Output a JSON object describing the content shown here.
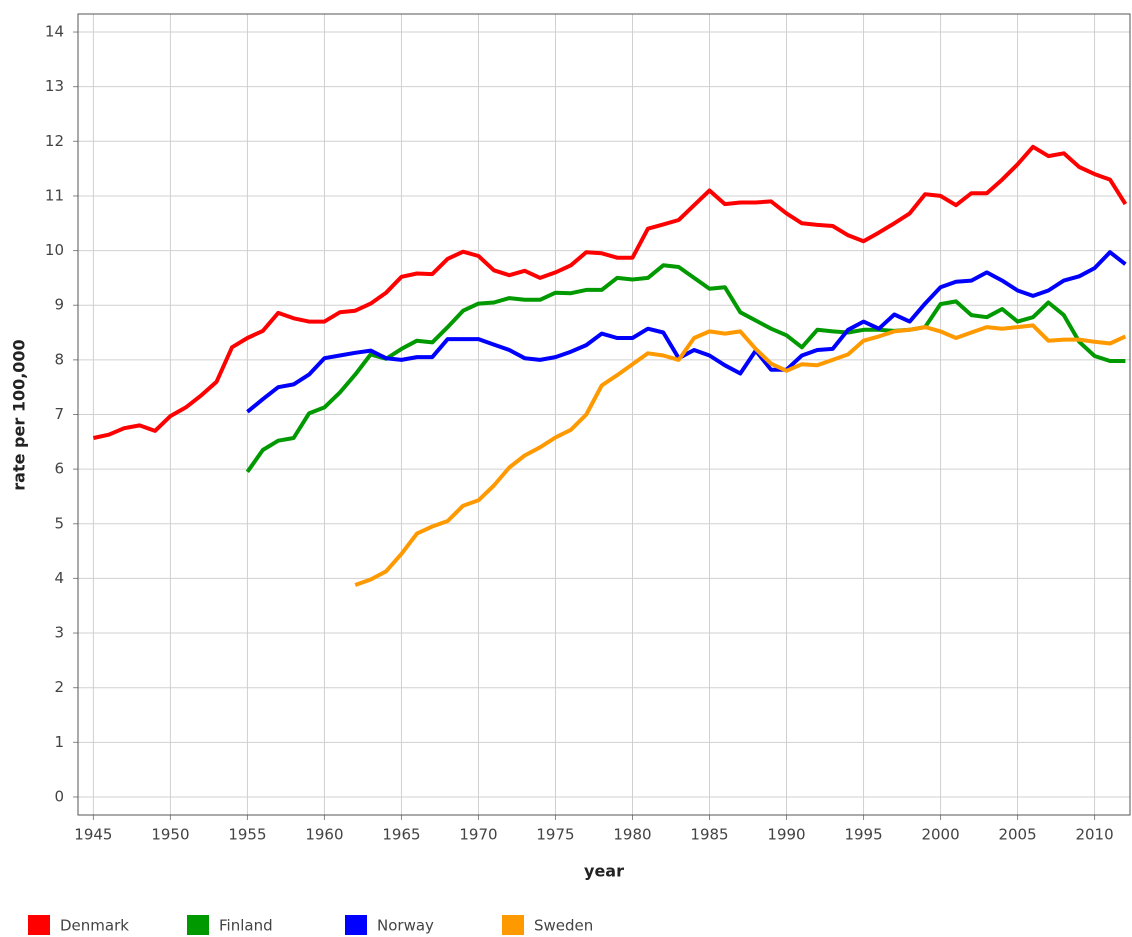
{
  "chart_data": {
    "type": "line",
    "x_label": "year",
    "y_label": "rate per 100,000",
    "x": [
      1945,
      1946,
      1947,
      1948,
      1949,
      1950,
      1951,
      1952,
      1953,
      1954,
      1955,
      1956,
      1957,
      1958,
      1959,
      1960,
      1961,
      1962,
      1963,
      1964,
      1965,
      1966,
      1967,
      1968,
      1969,
      1970,
      1971,
      1972,
      1973,
      1974,
      1975,
      1976,
      1977,
      1978,
      1979,
      1980,
      1981,
      1982,
      1983,
      1984,
      1985,
      1986,
      1987,
      1988,
      1989,
      1990,
      1991,
      1992,
      1993,
      1994,
      1995,
      1996,
      1997,
      1998,
      1999,
      2000,
      2001,
      2002,
      2003,
      2004,
      2005,
      2006,
      2007,
      2008,
      2009,
      2010,
      2011,
      2012
    ],
    "xlim": [
      1944,
      2012.3
    ],
    "xticks": [
      1945,
      1950,
      1955,
      1960,
      1965,
      1970,
      1975,
      1980,
      1985,
      1990,
      1995,
      2000,
      2005,
      2010
    ],
    "ylim": [
      -0.33,
      14.33
    ],
    "yticks": [
      0,
      1,
      2,
      3,
      4,
      5,
      6,
      7,
      8,
      9,
      10,
      11,
      12,
      13,
      14
    ],
    "grid": true,
    "legend": "bottom",
    "series": [
      {
        "name": "Denmark",
        "color": "#ff0000",
        "values": [
          6.57,
          6.63,
          6.75,
          6.8,
          6.7,
          6.97,
          7.13,
          7.35,
          7.6,
          8.23,
          8.4,
          8.53,
          8.86,
          8.76,
          8.7,
          8.7,
          8.87,
          8.9,
          9.03,
          9.23,
          9.52,
          9.58,
          9.57,
          9.85,
          9.98,
          9.9,
          9.64,
          9.55,
          9.63,
          9.5,
          9.6,
          9.73,
          9.97,
          9.95,
          9.87,
          9.87,
          10.4,
          10.48,
          10.56,
          10.83,
          11.1,
          10.85,
          10.88,
          10.88,
          10.9,
          10.68,
          10.5,
          10.47,
          10.45,
          10.28,
          10.17,
          10.33,
          10.5,
          10.68,
          11.03,
          11.0,
          10.83,
          11.05,
          11.05,
          11.3,
          11.58,
          11.9,
          11.73,
          11.78,
          11.53,
          11.4,
          11.3,
          10.85
        ]
      },
      {
        "name": "Finland",
        "color": "#009900",
        "values": [
          null,
          null,
          null,
          null,
          null,
          null,
          null,
          null,
          null,
          null,
          5.95,
          6.35,
          6.52,
          6.57,
          7.02,
          7.13,
          7.4,
          7.73,
          8.1,
          8.02,
          8.2,
          8.35,
          8.32,
          8.6,
          8.9,
          9.03,
          9.05,
          9.13,
          9.1,
          9.1,
          9.23,
          9.22,
          9.28,
          9.28,
          9.5,
          9.47,
          9.5,
          9.73,
          9.7,
          9.5,
          9.3,
          9.33,
          8.87,
          8.72,
          8.57,
          8.45,
          8.23,
          8.55,
          8.52,
          8.5,
          8.55,
          8.55,
          8.53,
          8.55,
          8.6,
          9.02,
          9.07,
          8.82,
          8.78,
          8.93,
          8.7,
          8.78,
          9.05,
          8.82,
          8.33,
          8.07,
          7.98,
          7.98
        ]
      },
      {
        "name": "Norway",
        "color": "#0000ff",
        "values": [
          null,
          null,
          null,
          null,
          null,
          null,
          null,
          null,
          null,
          null,
          7.05,
          7.28,
          7.5,
          7.55,
          7.73,
          8.03,
          8.08,
          8.13,
          8.17,
          8.03,
          8.0,
          8.05,
          8.05,
          8.38,
          8.38,
          8.38,
          8.28,
          8.18,
          8.03,
          8.0,
          8.05,
          8.15,
          8.27,
          8.48,
          8.4,
          8.4,
          8.57,
          8.5,
          8.03,
          8.18,
          8.08,
          7.9,
          7.75,
          8.17,
          7.82,
          7.82,
          8.08,
          8.18,
          8.2,
          8.55,
          8.7,
          8.57,
          8.83,
          8.7,
          9.03,
          9.33,
          9.43,
          9.45,
          9.6,
          9.45,
          9.27,
          9.17,
          9.27,
          9.45,
          9.53,
          9.68,
          9.97,
          9.75
        ]
      },
      {
        "name": "Sweden",
        "color": "#ff9900",
        "values": [
          null,
          null,
          null,
          null,
          null,
          null,
          null,
          null,
          null,
          null,
          null,
          null,
          null,
          null,
          null,
          null,
          null,
          3.88,
          3.98,
          4.13,
          4.45,
          4.82,
          4.95,
          5.05,
          5.33,
          5.43,
          5.7,
          6.03,
          6.25,
          6.4,
          6.58,
          6.72,
          7.0,
          7.53,
          7.72,
          7.92,
          8.12,
          8.08,
          8.0,
          8.4,
          8.52,
          8.48,
          8.52,
          8.2,
          7.93,
          7.8,
          7.92,
          7.9,
          8.0,
          8.1,
          8.35,
          8.43,
          8.52,
          8.55,
          8.6,
          8.52,
          8.4,
          8.5,
          8.6,
          8.57,
          8.6,
          8.63,
          8.35,
          8.37,
          8.37,
          8.33,
          8.3,
          8.43
        ]
      }
    ]
  }
}
